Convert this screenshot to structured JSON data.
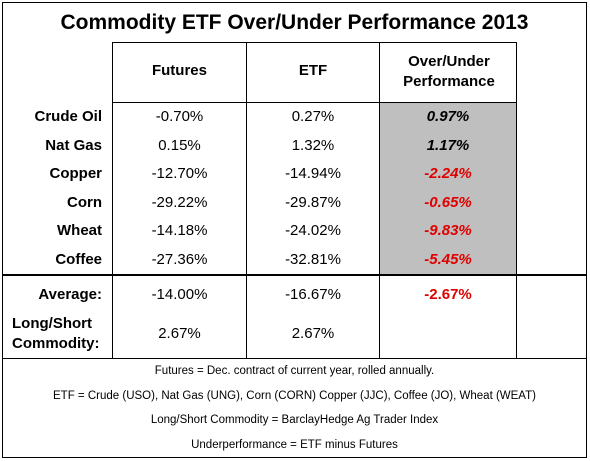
{
  "chart_data": {
    "type": "table",
    "title": "Commodity ETF Over/Under Performance 2013",
    "columns": [
      "Futures",
      "ETF",
      "Over/Under Performance"
    ],
    "rows": [
      {
        "label": "Crude Oil",
        "futures": "-0.70%",
        "etf": "0.27%",
        "perf": "0.97%"
      },
      {
        "label": "Nat Gas",
        "futures": "0.15%",
        "etf": "1.32%",
        "perf": "1.17%"
      },
      {
        "label": "Copper",
        "futures": "-12.70%",
        "etf": "-14.94%",
        "perf": "-2.24%"
      },
      {
        "label": "Corn",
        "futures": "-29.22%",
        "etf": "-29.87%",
        "perf": "-0.65%"
      },
      {
        "label": "Wheat",
        "futures": "-14.18%",
        "etf": "-24.02%",
        "perf": "-9.83%"
      },
      {
        "label": "Coffee",
        "futures": "-27.36%",
        "etf": "-32.81%",
        "perf": "-5.45%"
      }
    ],
    "average": {
      "label": "Average:",
      "futures": "-14.00%",
      "etf": "-16.67%",
      "perf": "-2.67%"
    },
    "longshort": {
      "label_line1": "Long/Short",
      "label_line2": "Commodity:",
      "futures": "2.67%",
      "etf": "2.67%"
    },
    "notes": [
      "Futures = Dec. contract of current year, rolled annually.",
      "ETF = Crude (USO), Nat Gas (UNG), Corn (CORN) Copper (JJC), Coffee (JO), Wheat (WEAT)",
      "Long/Short Commodity = BarclayHedge Ag Trader Index",
      "Underperformance = ETF minus Futures"
    ],
    "colors": {
      "negative": "#e00000",
      "positive": "#000000",
      "shade": "#bfbfbf"
    }
  }
}
